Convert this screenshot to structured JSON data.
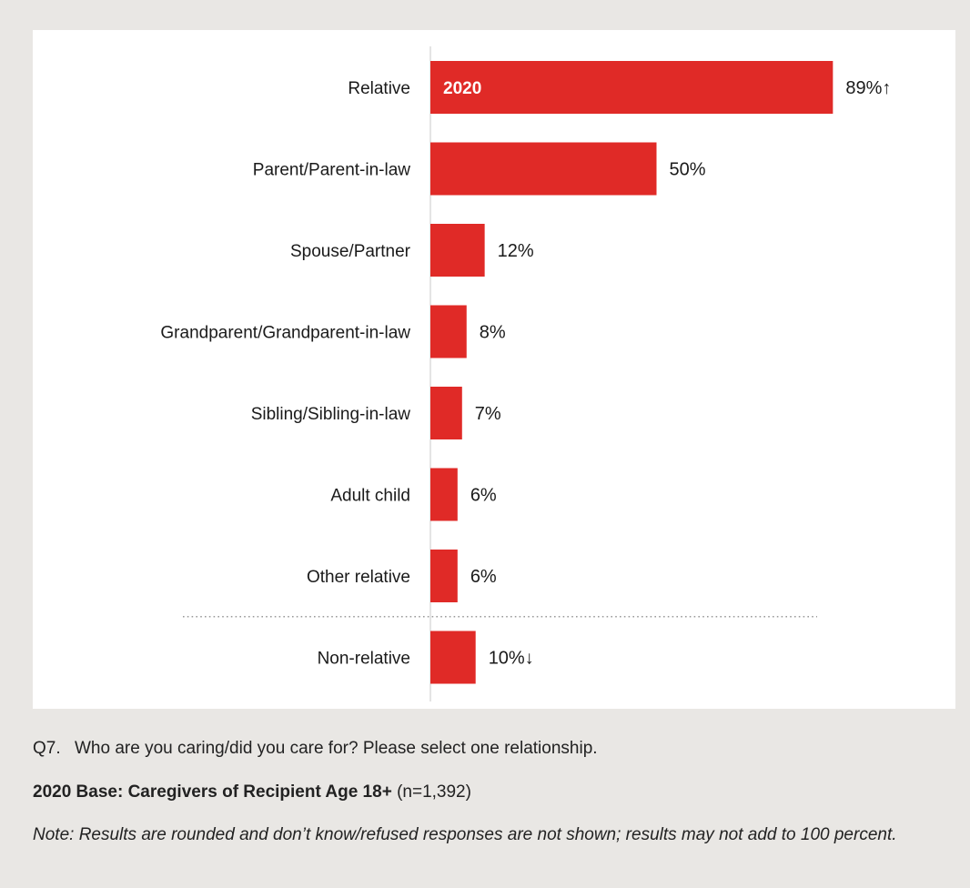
{
  "chart_data": {
    "type": "bar",
    "orientation": "horizontal",
    "legend_label": "2020",
    "categories": [
      "Relative",
      "Parent/Parent-in-law",
      "Spouse/Partner",
      "Grandparent/Grandparent-in-law",
      "Sibling/Sibling-in-law",
      "Adult child",
      "Other relative",
      "Non-relative"
    ],
    "values": [
      89,
      50,
      12,
      8,
      7,
      6,
      6,
      10
    ],
    "value_labels": [
      "89%↑",
      "50%",
      "12%",
      "8%",
      "7%",
      "6%",
      "6%",
      "10%↓"
    ],
    "separator_before_index": 7,
    "bar_color": "#e02a27",
    "xlim": [
      0,
      100
    ],
    "grid": false
  },
  "footer": {
    "question_number": "Q7.",
    "question_text": "Who are you caring/did you care for? Please select one relationship.",
    "base_bold": "2020 Base: Caregivers of Recipient Age 18+",
    "base_n": "(n=1,392)",
    "note": "Note: Results are rounded and don’t know/refused responses are not shown; results may not add to 100 percent."
  }
}
